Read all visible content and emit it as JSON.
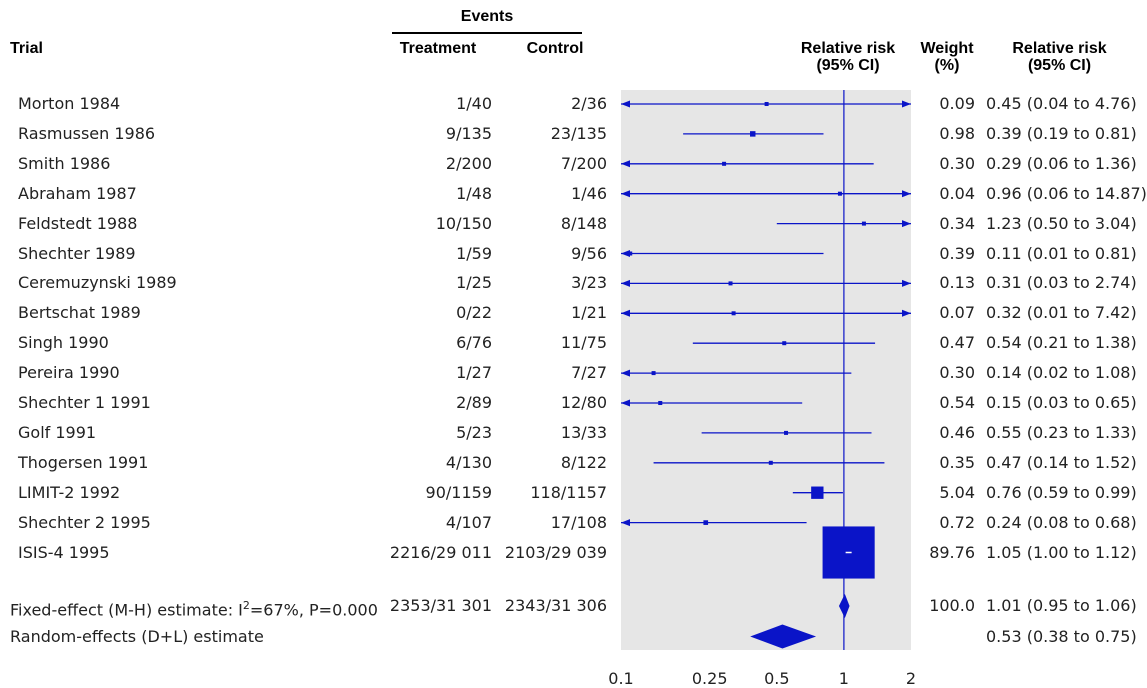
{
  "headers": {
    "trial": "Trial",
    "events": "Events",
    "treatment": "Treatment",
    "control": "Control",
    "rr_plot": "Relative risk\n(95% CI)",
    "weight": "Weight\n(%)",
    "rr_text": "Relative risk\n(95% CI)"
  },
  "colors": {
    "marker": "#0a14c8",
    "panel": "#e6e6e6",
    "text": "#222222"
  },
  "chart_data": {
    "type": "forest",
    "x_scale": "log",
    "xlim": [
      0.1,
      2
    ],
    "x_ticks": [
      0.1,
      0.25,
      0.5,
      1,
      2
    ],
    "x_tick_labels": [
      "0.1",
      "0.25",
      "0.5",
      "1",
      "2"
    ],
    "reference_line": 1,
    "studies": [
      {
        "trial": "Morton 1984",
        "treatment": "1/40",
        "control": "2/36",
        "rr": 0.45,
        "lo": 0.04,
        "hi": 4.76,
        "weight": "0.09",
        "ci_text": "0.45 (0.04 to 4.76)"
      },
      {
        "trial": "Rasmussen 1986",
        "treatment": "9/135",
        "control": "23/135",
        "rr": 0.39,
        "lo": 0.19,
        "hi": 0.81,
        "weight": "0.98",
        "ci_text": "0.39 (0.19 to 0.81)"
      },
      {
        "trial": "Smith 1986",
        "treatment": "2/200",
        "control": "7/200",
        "rr": 0.29,
        "lo": 0.06,
        "hi": 1.36,
        "weight": "0.30",
        "ci_text": "0.29 (0.06 to 1.36)"
      },
      {
        "trial": "Abraham 1987",
        "treatment": "1/48",
        "control": "1/46",
        "rr": 0.96,
        "lo": 0.06,
        "hi": 14.87,
        "weight": "0.04",
        "ci_text": "0.96 (0.06 to 14.87)"
      },
      {
        "trial": "Feldstedt 1988",
        "treatment": "10/150",
        "control": "8/148",
        "rr": 1.23,
        "lo": 0.5,
        "hi": 3.04,
        "weight": "0.34",
        "ci_text": "1.23 (0.50 to 3.04)"
      },
      {
        "trial": "Shechter 1989",
        "treatment": "1/59",
        "control": "9/56",
        "rr": 0.11,
        "lo": 0.01,
        "hi": 0.81,
        "weight": "0.39",
        "ci_text": "0.11 (0.01 to 0.81)"
      },
      {
        "trial": "Ceremuzynski 1989",
        "treatment": "1/25",
        "control": "3/23",
        "rr": 0.31,
        "lo": 0.03,
        "hi": 2.74,
        "weight": "0.13",
        "ci_text": "0.31 (0.03 to 2.74)"
      },
      {
        "trial": "Bertschat 1989",
        "treatment": "0/22",
        "control": "1/21",
        "rr": 0.32,
        "lo": 0.01,
        "hi": 7.42,
        "weight": "0.07",
        "ci_text": "0.32 (0.01 to 7.42)"
      },
      {
        "trial": "Singh 1990",
        "treatment": "6/76",
        "control": "11/75",
        "rr": 0.54,
        "lo": 0.21,
        "hi": 1.38,
        "weight": "0.47",
        "ci_text": "0.54 (0.21 to 1.38)"
      },
      {
        "trial": "Pereira 1990",
        "treatment": "1/27",
        "control": "7/27",
        "rr": 0.14,
        "lo": 0.02,
        "hi": 1.08,
        "weight": "0.30",
        "ci_text": "0.14 (0.02 to 1.08)"
      },
      {
        "trial": "Shechter 1 1991",
        "treatment": "2/89",
        "control": "12/80",
        "rr": 0.15,
        "lo": 0.03,
        "hi": 0.65,
        "weight": "0.54",
        "ci_text": "0.15 (0.03 to 0.65)"
      },
      {
        "trial": "Golf 1991",
        "treatment": "5/23",
        "control": "13/33",
        "rr": 0.55,
        "lo": 0.23,
        "hi": 1.33,
        "weight": "0.46",
        "ci_text": "0.55 (0.23 to 1.33)"
      },
      {
        "trial": "Thogersen 1991",
        "treatment": "4/130",
        "control": "8/122",
        "rr": 0.47,
        "lo": 0.14,
        "hi": 1.52,
        "weight": "0.35",
        "ci_text": "0.47 (0.14 to 1.52)"
      },
      {
        "trial": "LIMIT-2 1992",
        "treatment": "90/1159",
        "control": "118/1157",
        "rr": 0.76,
        "lo": 0.59,
        "hi": 0.99,
        "weight": "5.04",
        "ci_text": "0.76 (0.59 to 0.99)"
      },
      {
        "trial": "Shechter 2 1995",
        "treatment": "4/107",
        "control": "17/108",
        "rr": 0.24,
        "lo": 0.08,
        "hi": 0.68,
        "weight": "0.72",
        "ci_text": "0.24 (0.08 to 0.68)"
      },
      {
        "trial": "ISIS-4 1995",
        "treatment": "2216/29 011",
        "control": "2103/29 039",
        "rr": 1.05,
        "lo": 1.0,
        "hi": 1.12,
        "weight": "89.76",
        "ci_text": "1.05 (1.00 to 1.12)"
      }
    ],
    "summaries": [
      {
        "label_pre": "Fixed-effect (M-H) estimate: I",
        "label_sup": "2",
        "label_post": "=67%, P=0.000",
        "treatment": "2353/31 301",
        "control": "2343/31 306",
        "rr": 1.01,
        "lo": 0.95,
        "hi": 1.06,
        "weight": "100.0",
        "ci_text": "1.01 (0.95 to 1.06)"
      },
      {
        "label_pre": "Random-effects (D+L) estimate",
        "label_sup": "",
        "label_post": "",
        "treatment": "",
        "control": "",
        "rr": 0.53,
        "lo": 0.38,
        "hi": 0.75,
        "weight": "",
        "ci_text": "0.53 (0.38 to 0.75)"
      }
    ]
  }
}
